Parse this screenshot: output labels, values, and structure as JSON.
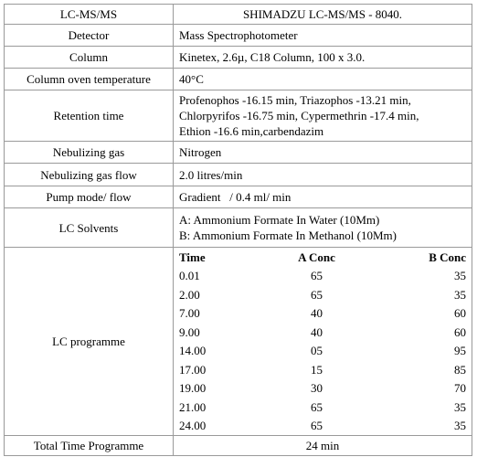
{
  "rows": [
    {
      "label": "LC-MS/MS",
      "value": "SHIMADZU LC-MS/MS - 8040."
    },
    {
      "label": "Detector",
      "value": "Mass Spectrophotometer"
    },
    {
      "label": "Column",
      "value": "Kinetex, 2.6µ, C18 Column, 100 x 3.0."
    },
    {
      "label": "Column oven temperature",
      "value": "40°C"
    },
    {
      "label": "Retention time",
      "lines": [
        "Profenophos  -16.15 min, Triazophos -13.21 min,",
        "Chlorpyrifos  -16.75 min, Cypermethrin   -17.4 min,",
        "Ethion -16.6 min,carbendazim"
      ]
    },
    {
      "label": "Nebulizing gas",
      "value": "Nitrogen"
    },
    {
      "label": "Nebulizing gas flow",
      "value": "2.0 litres/min"
    },
    {
      "label": "Pump mode/ flow",
      "value": "Gradient   / 0.4 ml/ min"
    },
    {
      "label": "LC Solvents",
      "lines": [
        "A: Ammonium Formate In Water (10Mm)",
        "B: Ammonium Formate In Methanol (10Mm)"
      ]
    }
  ],
  "lc_programme": {
    "label": "LC programme",
    "header": [
      "Time",
      "A Conc",
      "B Conc"
    ],
    "rows": [
      [
        "0.01",
        "65",
        "35"
      ],
      [
        "2.00",
        "65",
        "35"
      ],
      [
        "7.00",
        "40",
        "60"
      ],
      [
        "9.00",
        "40",
        "60"
      ],
      [
        "14.00",
        "05",
        "95"
      ],
      [
        "17.00",
        "15",
        "85"
      ],
      [
        "19.00",
        "30",
        "70"
      ],
      [
        "21.00",
        "65",
        "35"
      ],
      [
        "24.00",
        "65",
        "35"
      ]
    ]
  },
  "total": {
    "label": "Total Time Programme",
    "value": "24 min"
  }
}
